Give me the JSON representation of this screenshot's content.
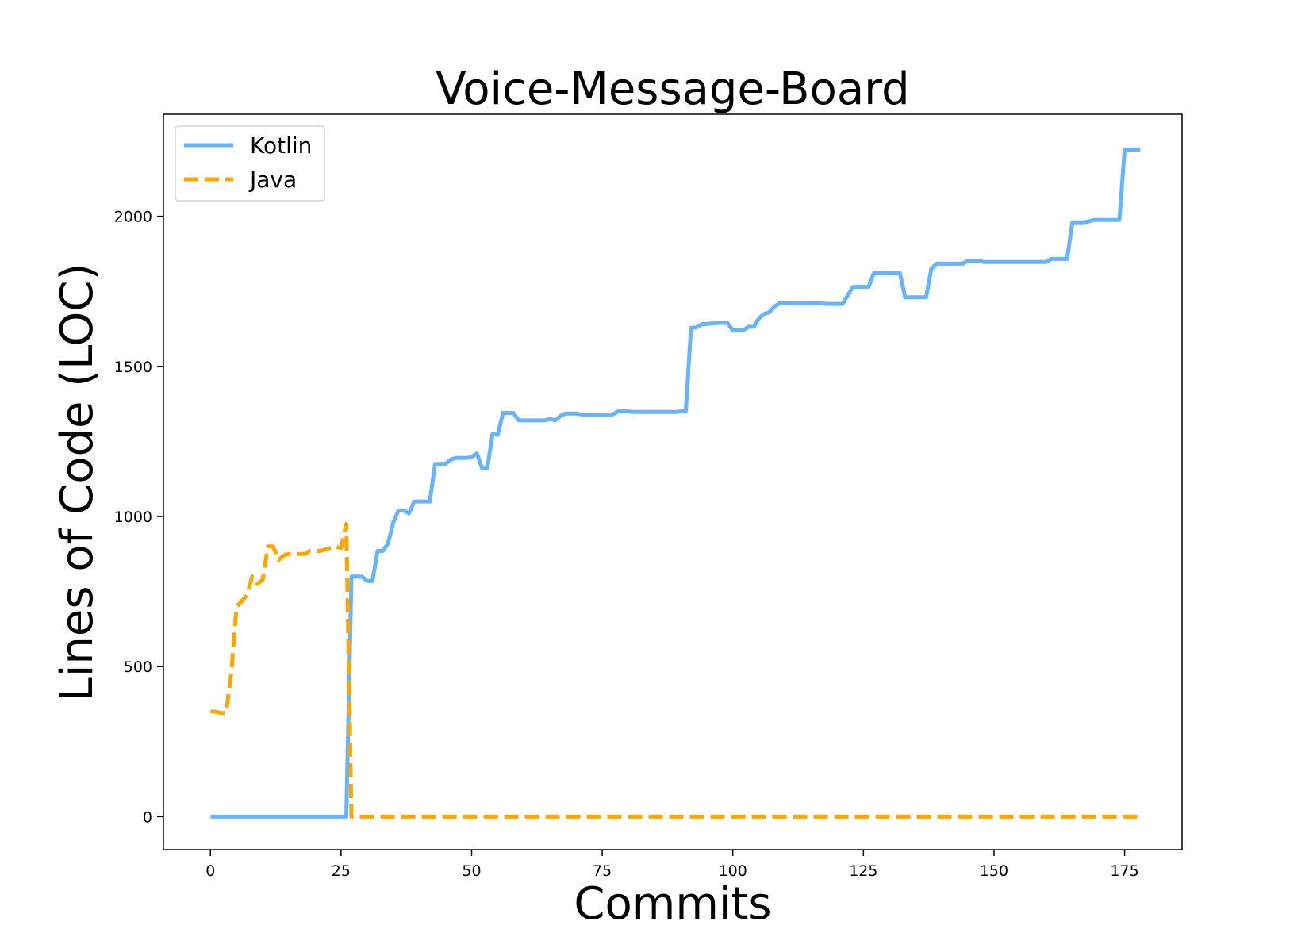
{
  "chart_data": {
    "type": "line",
    "title": "Voice-Message-Board",
    "xlabel": "Commits",
    "ylabel": "Lines of Code (LOC)",
    "xlim": [
      -9,
      186
    ],
    "ylim": [
      -110,
      2340
    ],
    "xticks": [
      0,
      25,
      50,
      75,
      100,
      125,
      150,
      175
    ],
    "yticks": [
      0,
      500,
      1000,
      1500,
      2000
    ],
    "grid": false,
    "legend_position": "top-left",
    "series": [
      {
        "name": "Kotlin",
        "color": "#66b3ff",
        "style": "solid",
        "points": [
          [
            0,
            0
          ],
          [
            26,
            0
          ],
          [
            27,
            800
          ],
          [
            29,
            800
          ],
          [
            30,
            785
          ],
          [
            31,
            785
          ],
          [
            32,
            885
          ],
          [
            33,
            885
          ],
          [
            34,
            910
          ],
          [
            35,
            980
          ],
          [
            36,
            1020
          ],
          [
            37,
            1020
          ],
          [
            38,
            1010
          ],
          [
            39,
            1050
          ],
          [
            42,
            1050
          ],
          [
            43,
            1175
          ],
          [
            45,
            1175
          ],
          [
            46,
            1190
          ],
          [
            47,
            1195
          ],
          [
            49,
            1195
          ],
          [
            50,
            1198
          ],
          [
            51,
            1210
          ],
          [
            52,
            1160
          ],
          [
            53,
            1160
          ],
          [
            54,
            1275
          ],
          [
            55,
            1272
          ],
          [
            56,
            1345
          ],
          [
            58,
            1345
          ],
          [
            59,
            1320
          ],
          [
            64,
            1320
          ],
          [
            65,
            1325
          ],
          [
            66,
            1320
          ],
          [
            67,
            1335
          ],
          [
            68,
            1343
          ],
          [
            70,
            1343
          ],
          [
            71,
            1340
          ],
          [
            72,
            1338
          ],
          [
            75,
            1338
          ],
          [
            76,
            1340
          ],
          [
            77,
            1340
          ],
          [
            78,
            1350
          ],
          [
            80,
            1350
          ],
          [
            81,
            1348
          ],
          [
            89,
            1348
          ],
          [
            91,
            1352
          ],
          [
            92,
            1628
          ],
          [
            93,
            1630
          ],
          [
            94,
            1640
          ],
          [
            96,
            1643
          ],
          [
            97,
            1645
          ],
          [
            99,
            1645
          ],
          [
            100,
            1620
          ],
          [
            102,
            1620
          ],
          [
            103,
            1632
          ],
          [
            104,
            1632
          ],
          [
            105,
            1660
          ],
          [
            106,
            1675
          ],
          [
            107,
            1680
          ],
          [
            108,
            1700
          ],
          [
            109,
            1710
          ],
          [
            117,
            1710
          ],
          [
            118,
            1708
          ],
          [
            121,
            1708
          ],
          [
            123,
            1765
          ],
          [
            126,
            1765
          ],
          [
            127,
            1810
          ],
          [
            132,
            1810
          ],
          [
            133,
            1730
          ],
          [
            137,
            1730
          ],
          [
            138,
            1825
          ],
          [
            139,
            1842
          ],
          [
            144,
            1842
          ],
          [
            145,
            1852
          ],
          [
            147,
            1852
          ],
          [
            148,
            1848
          ],
          [
            160,
            1848
          ],
          [
            161,
            1858
          ],
          [
            164,
            1858
          ],
          [
            165,
            1980
          ],
          [
            167,
            1980
          ],
          [
            168,
            1982
          ],
          [
            169,
            1988
          ],
          [
            174,
            1988
          ],
          [
            175,
            2222
          ],
          [
            178,
            2222
          ]
        ]
      },
      {
        "name": "Java",
        "color": "#ffa500",
        "style": "dashed",
        "points": [
          [
            0,
            350
          ],
          [
            1,
            350
          ],
          [
            2,
            345
          ],
          [
            3,
            345
          ],
          [
            4,
            480
          ],
          [
            5,
            700
          ],
          [
            6,
            718
          ],
          [
            7,
            738
          ],
          [
            8,
            800
          ],
          [
            9,
            775
          ],
          [
            10,
            790
          ],
          [
            11,
            900
          ],
          [
            12,
            900
          ],
          [
            13,
            855
          ],
          [
            14,
            870
          ],
          [
            15,
            875
          ],
          [
            18,
            875
          ],
          [
            19,
            885
          ],
          [
            21,
            885
          ],
          [
            22,
            890
          ],
          [
            24,
            900
          ],
          [
            25,
            895
          ],
          [
            26,
            975
          ],
          [
            27,
            0
          ],
          [
            178,
            0
          ]
        ]
      }
    ]
  }
}
